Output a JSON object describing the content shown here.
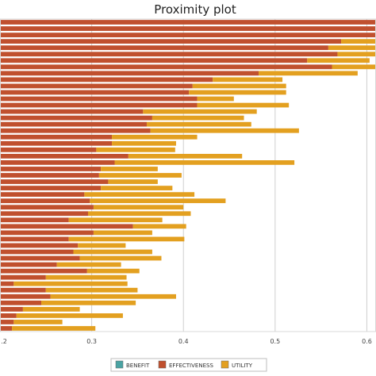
{
  "chart_data": {
    "type": "bar",
    "orientation": "horizontal",
    "stacked": true,
    "title": "Proximity plot",
    "xlabel": "",
    "ylabel": "",
    "xlim": [
      0.2,
      0.61
    ],
    "x_ticks": [
      0.2,
      0.3,
      0.4,
      0.5,
      0.6
    ],
    "x_tick_labels": [
      ".2",
      "0.3",
      "0.4",
      "0.5",
      "0.6"
    ],
    "grid": "vertical",
    "legend_placement": "bottom",
    "series": [
      {
        "name": "BENEFIT",
        "color": "#4aa3a3",
        "values": []
      },
      {
        "name": "EFFECTIVENESS",
        "color": "#c0502e",
        "values": [
          0.61,
          0.61,
          0.61,
          0.572,
          0.558,
          0.568,
          0.535,
          0.562,
          0.482,
          0.432,
          0.41,
          0.406,
          0.415,
          0.415,
          0.356,
          0.366,
          0.36,
          0.364,
          0.322,
          0.322,
          0.305,
          0.34,
          0.325,
          0.31,
          0.308,
          0.318,
          0.31,
          0.292,
          0.298,
          0.302,
          0.296,
          0.275,
          0.345,
          0.302,
          0.275,
          0.285,
          0.28,
          0.287,
          0.262,
          0.295,
          0.25,
          0.215,
          0.25,
          0.255,
          0.245,
          0.225,
          0.218,
          0.215,
          0.213
        ]
      },
      {
        "name": "UTILITY",
        "color": "#e3a020",
        "values": [
          0,
          0,
          0,
          0.04,
          0.052,
          0.042,
          0.068,
          0.048,
          0.108,
          0.076,
          0.102,
          0.106,
          0.04,
          0.1,
          0.124,
          0.1,
          0.114,
          0.162,
          0.093,
          0.07,
          0.086,
          0.124,
          0.196,
          0.062,
          0.09,
          0.054,
          0.078,
          0.12,
          0.148,
          0.098,
          0.112,
          0.102,
          0.058,
          0.064,
          0.126,
          0.052,
          0.086,
          0.089,
          0.07,
          0.057,
          0.088,
          0.124,
          0.1,
          0.137,
          0.103,
          0.062,
          0.116,
          0.053,
          0.091
        ]
      }
    ]
  }
}
